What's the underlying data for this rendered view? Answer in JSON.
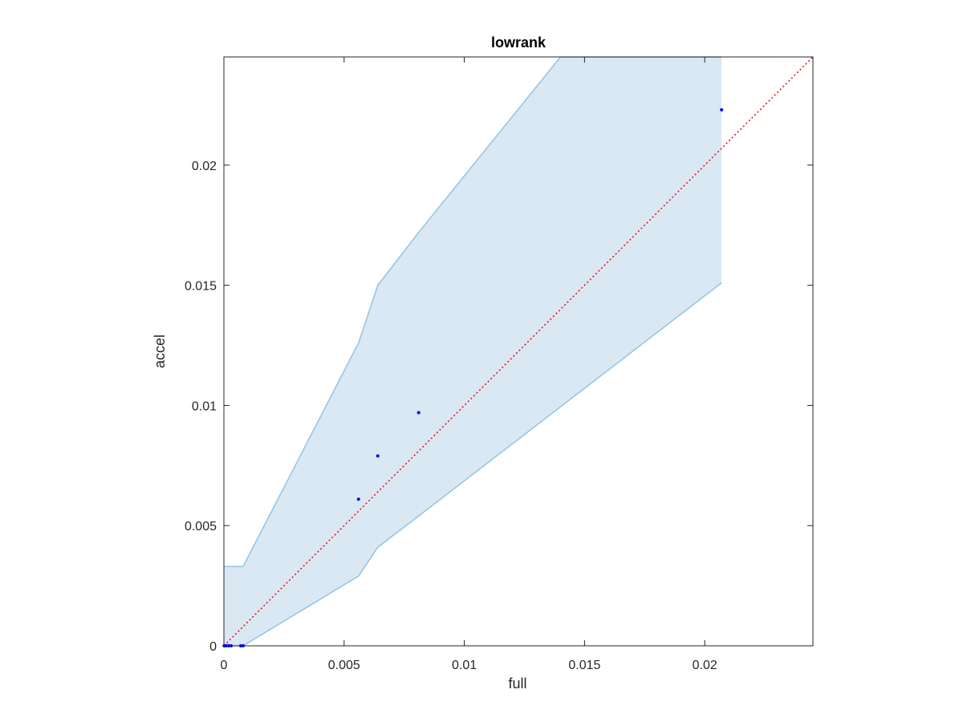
{
  "chart_data": {
    "type": "scatter",
    "title": "lowrank",
    "xlabel": "full",
    "ylabel": "accel",
    "xlim": [
      0,
      0.0245
    ],
    "ylim": [
      0,
      0.0245
    ],
    "xticks": [
      0,
      0.005,
      0.01,
      0.015,
      0.02
    ],
    "xtick_labels": [
      "0",
      "0.005",
      "0.01",
      "0.015",
      "0.02"
    ],
    "yticks": [
      0,
      0.005,
      0.01,
      0.015,
      0.02
    ],
    "ytick_labels": [
      "0",
      "0.005",
      "0.01",
      "0.015",
      "0.02"
    ],
    "grid": false,
    "points": [
      {
        "x": 1e-05,
        "y": 0.0
      },
      {
        "x": 5e-05,
        "y": 0.0
      },
      {
        "x": 0.0001,
        "y": 0.0
      },
      {
        "x": 0.0002,
        "y": 0.0
      },
      {
        "x": 0.0003,
        "y": 0.0
      },
      {
        "x": 0.0007,
        "y": 0.0
      },
      {
        "x": 0.0008,
        "y": 0.0
      },
      {
        "x": 0.0056,
        "y": 0.0061
      },
      {
        "x": 0.0064,
        "y": 0.0079
      },
      {
        "x": 0.0081,
        "y": 0.0097
      },
      {
        "x": 0.0207,
        "y": 0.0223
      }
    ],
    "band_upper": [
      {
        "x": 0.0,
        "y": 0.0033
      },
      {
        "x": 0.0008,
        "y": 0.0033
      },
      {
        "x": 0.0056,
        "y": 0.0126
      },
      {
        "x": 0.0064,
        "y": 0.015
      },
      {
        "x": 0.0081,
        "y": 0.0172
      },
      {
        "x": 0.014,
        "y": 0.0245
      },
      {
        "x": 0.0207,
        "y": 0.0245
      }
    ],
    "band_lower": [
      {
        "x": 0.0,
        "y": 0.0
      },
      {
        "x": 0.0008,
        "y": 0.0
      },
      {
        "x": 0.0056,
        "y": 0.0029
      },
      {
        "x": 0.0064,
        "y": 0.0041
      },
      {
        "x": 0.0081,
        "y": 0.0054
      },
      {
        "x": 0.0207,
        "y": 0.0151
      }
    ],
    "reference_line": {
      "from": [
        0,
        0
      ],
      "to": [
        0.0245,
        0.0245
      ],
      "style": "dotted"
    },
    "colors": {
      "band_fill": "#dae8f4",
      "band_edge": "#92c3e2",
      "points": "#0000ff",
      "reference": "#ff0000",
      "axes": "#262626"
    }
  }
}
